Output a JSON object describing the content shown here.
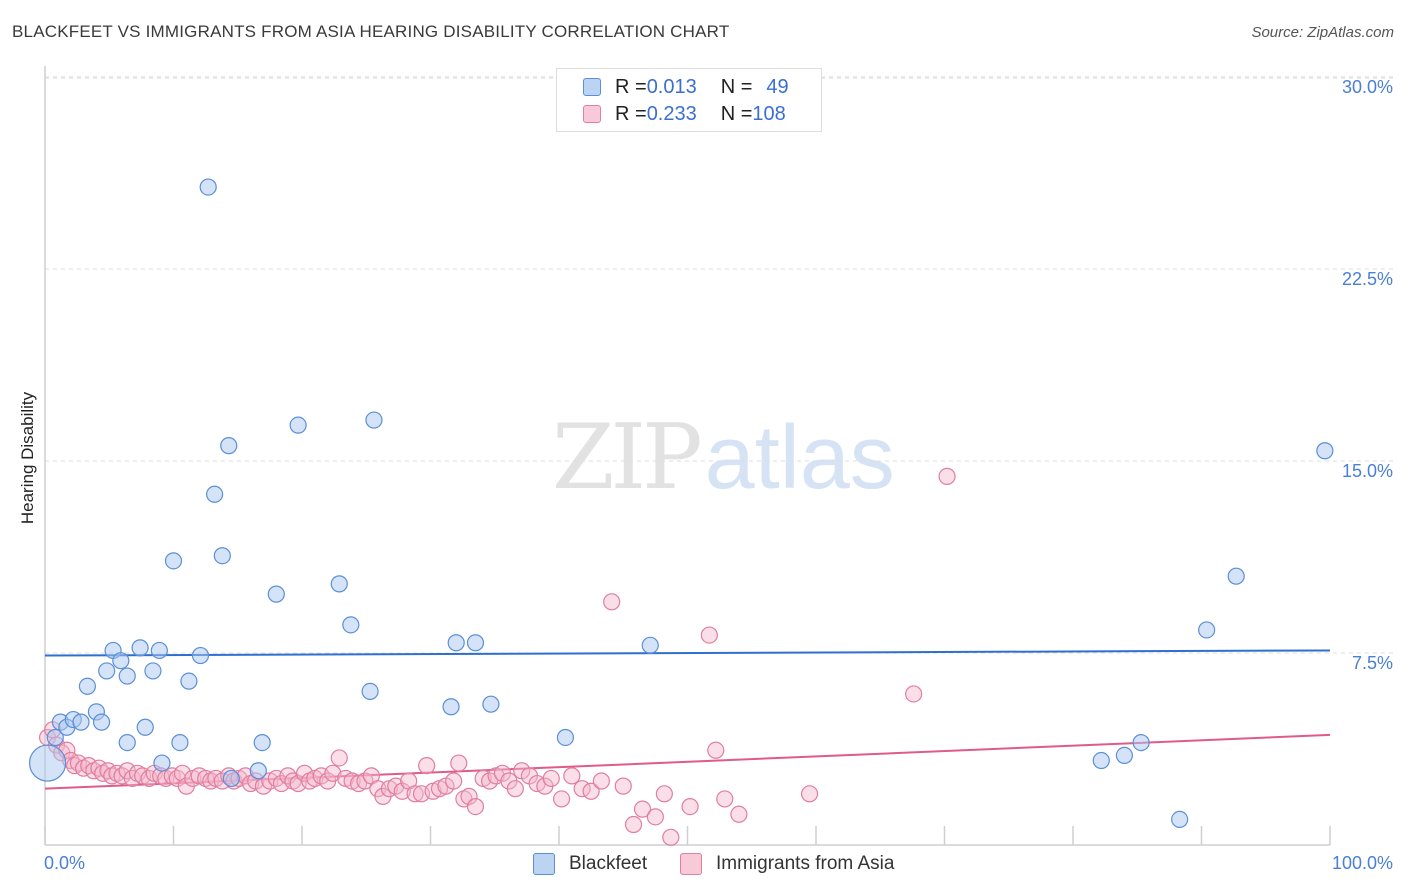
{
  "header": {
    "title": "BLACKFEET VS IMMIGRANTS FROM ASIA HEARING DISABILITY CORRELATION CHART",
    "source": "Source: ZipAtlas.com"
  },
  "watermark": {
    "zip": "ZIP",
    "atlas": "atlas"
  },
  "legend": {
    "rows": [
      {
        "r_label": "R = ",
        "r_value": "0.013",
        "n_label": "N = ",
        "n_value": "49"
      },
      {
        "r_label": "R = ",
        "r_value": "0.233",
        "n_label": "N = ",
        "n_value": "108"
      }
    ]
  },
  "bottom_legend": {
    "series1": "Blackfeet",
    "series2": "Immigrants from Asia"
  },
  "colors": {
    "blue_fill": "#a9c8f0",
    "blue_stroke": "#5b8fd6",
    "blue_line": "#2f6fcf",
    "pink_fill": "#f5b8cb",
    "pink_stroke": "#e07ea0",
    "pink_line": "#e05a8a",
    "grid": "#dedede",
    "axis": "#cfcfcf",
    "tick_text": "#4a7fd4"
  },
  "chart_data": {
    "type": "scatter",
    "title": "BLACKFEET VS IMMIGRANTS FROM ASIA HEARING DISABILITY CORRELATION CHART",
    "xlabel": "",
    "ylabel": "Hearing Disability",
    "xlim": [
      0,
      100
    ],
    "ylim": [
      0,
      31
    ],
    "x_tick_labels": [
      "0.0%",
      "100.0%"
    ],
    "y_ticks": [
      7.5,
      15.0,
      22.5,
      30.0
    ],
    "y_tick_labels": [
      "7.5%",
      "15.0%",
      "22.5%",
      "30.0%"
    ],
    "grid": true,
    "legend_position": "top-center",
    "series": [
      {
        "name": "Blackfeet",
        "R": 0.013,
        "N": 49,
        "trend": {
          "x": [
            0,
            100
          ],
          "y": [
            7.4,
            7.6
          ]
        },
        "points": [
          [
            0.2,
            3.2
          ],
          [
            0.8,
            4.2
          ],
          [
            1.2,
            4.8
          ],
          [
            1.7,
            4.6
          ],
          [
            2.2,
            4.9
          ],
          [
            2.8,
            4.8
          ],
          [
            3.3,
            6.2
          ],
          [
            4.0,
            5.2
          ],
          [
            4.4,
            4.8
          ],
          [
            4.8,
            6.8
          ],
          [
            5.3,
            7.6
          ],
          [
            5.9,
            7.2
          ],
          [
            6.4,
            6.6
          ],
          [
            6.4,
            4.0
          ],
          [
            7.4,
            7.7
          ],
          [
            7.8,
            4.6
          ],
          [
            8.4,
            6.8
          ],
          [
            8.9,
            7.6
          ],
          [
            9.1,
            3.2
          ],
          [
            10.0,
            11.1
          ],
          [
            10.5,
            4.0
          ],
          [
            11.2,
            6.4
          ],
          [
            12.1,
            7.4
          ],
          [
            12.7,
            25.7
          ],
          [
            13.2,
            13.7
          ],
          [
            13.8,
            11.3
          ],
          [
            14.3,
            15.6
          ],
          [
            14.5,
            2.6
          ],
          [
            16.6,
            2.9
          ],
          [
            16.9,
            4.0
          ],
          [
            18.0,
            9.8
          ],
          [
            19.7,
            16.4
          ],
          [
            22.9,
            10.2
          ],
          [
            23.8,
            8.6
          ],
          [
            25.3,
            6.0
          ],
          [
            25.6,
            16.6
          ],
          [
            31.6,
            5.4
          ],
          [
            32.0,
            7.9
          ],
          [
            33.5,
            7.9
          ],
          [
            34.7,
            5.5
          ],
          [
            40.5,
            4.2
          ],
          [
            47.1,
            7.8
          ],
          [
            82.2,
            3.3
          ],
          [
            84.0,
            3.5
          ],
          [
            85.3,
            4.0
          ],
          [
            88.3,
            1.0
          ],
          [
            90.4,
            8.4
          ],
          [
            92.7,
            10.5
          ],
          [
            99.6,
            15.4
          ]
        ]
      },
      {
        "name": "Immigrants from Asia",
        "R": 0.233,
        "N": 108,
        "trend": {
          "x": [
            0,
            100
          ],
          "y": [
            2.2,
            4.3
          ]
        },
        "points": [
          [
            0.2,
            4.2
          ],
          [
            0.6,
            4.5
          ],
          [
            0.9,
            3.9
          ],
          [
            1.3,
            3.6
          ],
          [
            1.7,
            3.7
          ],
          [
            2.0,
            3.3
          ],
          [
            2.3,
            3.1
          ],
          [
            2.6,
            3.2
          ],
          [
            3.0,
            3.0
          ],
          [
            3.4,
            3.1
          ],
          [
            3.8,
            2.9
          ],
          [
            4.2,
            3.0
          ],
          [
            4.5,
            2.8
          ],
          [
            4.9,
            2.9
          ],
          [
            5.2,
            2.7
          ],
          [
            5.6,
            2.8
          ],
          [
            6.0,
            2.7
          ],
          [
            6.4,
            2.9
          ],
          [
            6.8,
            2.6
          ],
          [
            7.2,
            2.8
          ],
          [
            7.6,
            2.7
          ],
          [
            8.1,
            2.6
          ],
          [
            8.5,
            2.8
          ],
          [
            9.0,
            2.7
          ],
          [
            9.4,
            2.6
          ],
          [
            9.9,
            2.7
          ],
          [
            10.3,
            2.6
          ],
          [
            10.7,
            2.8
          ],
          [
            11.0,
            2.3
          ],
          [
            11.5,
            2.6
          ],
          [
            12.0,
            2.7
          ],
          [
            12.5,
            2.6
          ],
          [
            12.9,
            2.5
          ],
          [
            13.3,
            2.6
          ],
          [
            13.8,
            2.5
          ],
          [
            14.3,
            2.7
          ],
          [
            14.7,
            2.5
          ],
          [
            15.1,
            2.6
          ],
          [
            15.6,
            2.7
          ],
          [
            16.0,
            2.4
          ],
          [
            16.4,
            2.5
          ],
          [
            17.0,
            2.3
          ],
          [
            17.5,
            2.5
          ],
          [
            18.0,
            2.6
          ],
          [
            18.4,
            2.4
          ],
          [
            18.9,
            2.7
          ],
          [
            19.3,
            2.5
          ],
          [
            19.7,
            2.4
          ],
          [
            20.2,
            2.8
          ],
          [
            20.6,
            2.5
          ],
          [
            21.0,
            2.6
          ],
          [
            21.5,
            2.7
          ],
          [
            22.0,
            2.5
          ],
          [
            22.4,
            2.8
          ],
          [
            22.9,
            3.4
          ],
          [
            23.4,
            2.6
          ],
          [
            23.9,
            2.5
          ],
          [
            24.4,
            2.4
          ],
          [
            24.9,
            2.5
          ],
          [
            25.4,
            2.7
          ],
          [
            25.9,
            2.2
          ],
          [
            26.3,
            1.9
          ],
          [
            26.8,
            2.2
          ],
          [
            27.3,
            2.3
          ],
          [
            27.8,
            2.1
          ],
          [
            28.3,
            2.5
          ],
          [
            28.8,
            2.0
          ],
          [
            29.3,
            2.0
          ],
          [
            29.7,
            3.1
          ],
          [
            30.2,
            2.1
          ],
          [
            30.7,
            2.2
          ],
          [
            31.2,
            2.3
          ],
          [
            31.8,
            2.5
          ],
          [
            32.2,
            3.2
          ],
          [
            32.6,
            1.8
          ],
          [
            33.0,
            1.9
          ],
          [
            33.5,
            1.5
          ],
          [
            34.1,
            2.6
          ],
          [
            34.6,
            2.5
          ],
          [
            35.1,
            2.7
          ],
          [
            35.6,
            2.8
          ],
          [
            36.1,
            2.5
          ],
          [
            36.6,
            2.2
          ],
          [
            37.1,
            2.9
          ],
          [
            37.7,
            2.7
          ],
          [
            38.3,
            2.4
          ],
          [
            38.9,
            2.3
          ],
          [
            39.4,
            2.6
          ],
          [
            40.2,
            1.8
          ],
          [
            41.0,
            2.7
          ],
          [
            41.8,
            2.2
          ],
          [
            42.5,
            2.1
          ],
          [
            43.3,
            2.5
          ],
          [
            44.1,
            9.5
          ],
          [
            45.0,
            2.3
          ],
          [
            45.8,
            0.8
          ],
          [
            46.5,
            1.4
          ],
          [
            47.5,
            1.1
          ],
          [
            48.2,
            2.0
          ],
          [
            48.7,
            0.3
          ],
          [
            50.2,
            1.5
          ],
          [
            51.7,
            8.2
          ],
          [
            52.2,
            3.7
          ],
          [
            52.9,
            1.8
          ],
          [
            54.0,
            1.2
          ],
          [
            59.5,
            2.0
          ],
          [
            67.6,
            5.9
          ],
          [
            70.2,
            14.4
          ]
        ]
      }
    ]
  }
}
